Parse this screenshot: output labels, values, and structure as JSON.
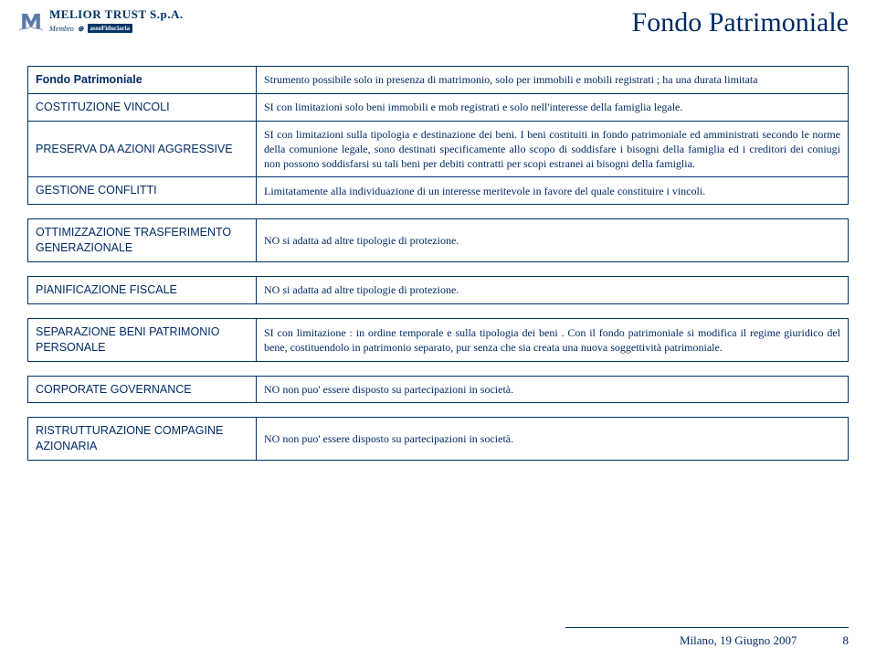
{
  "header": {
    "company_name": "MELIOR TRUST S.p.A.",
    "membro": "Membro",
    "membro_badge": "assoFiduciaria",
    "page_title": "Fondo Patrimoniale"
  },
  "table": {
    "rows": [
      {
        "label": "Fondo Patrimoniale",
        "bold": true,
        "value": "Strumento possibile solo in presenza di matrimonio, solo per immobili e mobili registrati ; ha una  durata limitata"
      },
      {
        "label": "COSTITUZIONE VINCOLI",
        "value": "SI con limitazioni   solo beni immobili e mob registrati e solo nell'interesse della famiglia legale."
      },
      {
        "label": "PRESERVA DA AZIONI AGGRESSIVE",
        "value": "SI  con  limitazioni  sulla  tipologia e destinazione dei beni. I beni costituiti in fondo patrimoniale ed amministrati secondo le norme della comunione legale, sono destinati specificamente allo scopo di soddisfare i bisogni della famiglia ed i creditori dei coniugi non possono soddisfarsi su tali beni per debiti contratti per scopi estranei ai bisogni della famiglia."
      },
      {
        "label": "GESTIONE  CONFLITTI",
        "value": "Limitatamente alla individuazione di un interesse meritevole in favore del quale constituire i vincoli."
      },
      {
        "spacer": true
      },
      {
        "label": "OTTIMIZZAZIONE TRASFERIMENTO GENERAZIONALE",
        "value": " NO si adatta ad altre tipologie di protezione."
      },
      {
        "spacer": true
      },
      {
        "label": "PIANIFICAZIONE FISCALE",
        "value": " NO si adatta ad altre tipologie di protezione."
      },
      {
        "spacer": true
      },
      {
        "label": "SEPARAZIONE BENI PATRIMONIO PERSONALE",
        "value": "SI con limitazione : in ordine temporale e sulla tipologia dei beni . Con il fondo patrimoniale  si modifica  il regime giuridico del bene, costituendolo in patrimonio separato, pur senza che sia creata una nuova soggettività patrimoniale."
      },
      {
        "spacer": true
      },
      {
        "label": "CORPORATE GOVERNANCE",
        "value": "NO  non puo' essere disposto su partecipazioni in società."
      },
      {
        "spacer": true
      },
      {
        "label": "RISTRUTTURAZIONE      COMPAGINE AZIONARIA",
        "value": " NO  non puo' essere disposto su partecipazioni in società."
      }
    ]
  },
  "footer": {
    "location_date": "Milano, 19 Giugno 2007",
    "page_number": "8"
  },
  "colors": {
    "text": "#002b66",
    "border": "#003366",
    "background": "#ffffff"
  }
}
